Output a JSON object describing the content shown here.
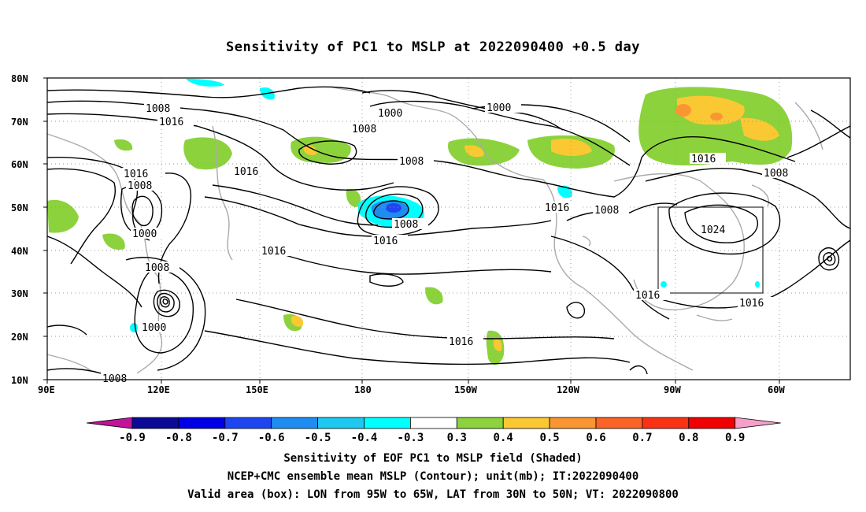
{
  "title": "Sensitivity of PC1 to MSLP at 2022090400 +0.5 day",
  "lat_labels": [
    "80N",
    "70N",
    "60N",
    "50N",
    "40N",
    "30N",
    "20N",
    "10N"
  ],
  "lon_labels": [
    "90E",
    "120E",
    "150E",
    "180",
    "150W",
    "120W",
    "90W",
    "60W"
  ],
  "contour_labels": [
    "1008",
    "1016",
    "1008",
    "1000",
    "1000",
    "1008",
    "1016",
    "1016",
    "1008",
    "1000",
    "1008",
    "1016",
    "1008",
    "1016",
    "1016",
    "1024",
    "1016",
    "1016",
    "1016",
    "1008",
    "1000",
    "1016",
    "1008",
    "1008"
  ],
  "colorbar": {
    "labels": [
      "-0.9",
      "-0.8",
      "-0.7",
      "-0.6",
      "-0.5",
      "-0.4",
      "-0.3",
      "0.3",
      "0.4",
      "0.5",
      "0.6",
      "0.7",
      "0.8",
      "0.9"
    ],
    "colors": [
      "#c0149b",
      "#0a0a96",
      "#0000e6",
      "#1e46f0",
      "#1e8cf0",
      "#1ec8f0",
      "#00ffff",
      "#ffffff",
      "#8cd23c",
      "#fac832",
      "#fa9632",
      "#fa6428",
      "#fa3214",
      "#f00000",
      "#f5a0c8"
    ]
  },
  "shading_colors": {
    "green": "#8cd23c",
    "yellow": "#fac832",
    "orange": "#fa9632",
    "cyan": "#00ffff",
    "lightblue": "#1ec8f0",
    "blue": "#1e8cf0",
    "darkblue": "#1e46f0"
  },
  "footer": {
    "line1": "Sensitivity of EOF PC1 to MSLP field (Shaded)",
    "line2": "NCEP+CMC ensemble mean MSLP (Contour); unit(mb); IT:2022090400",
    "line3": "Valid area (box): LON from 95W to 65W, LAT from 30N to 50N; VT: 2022090800"
  }
}
